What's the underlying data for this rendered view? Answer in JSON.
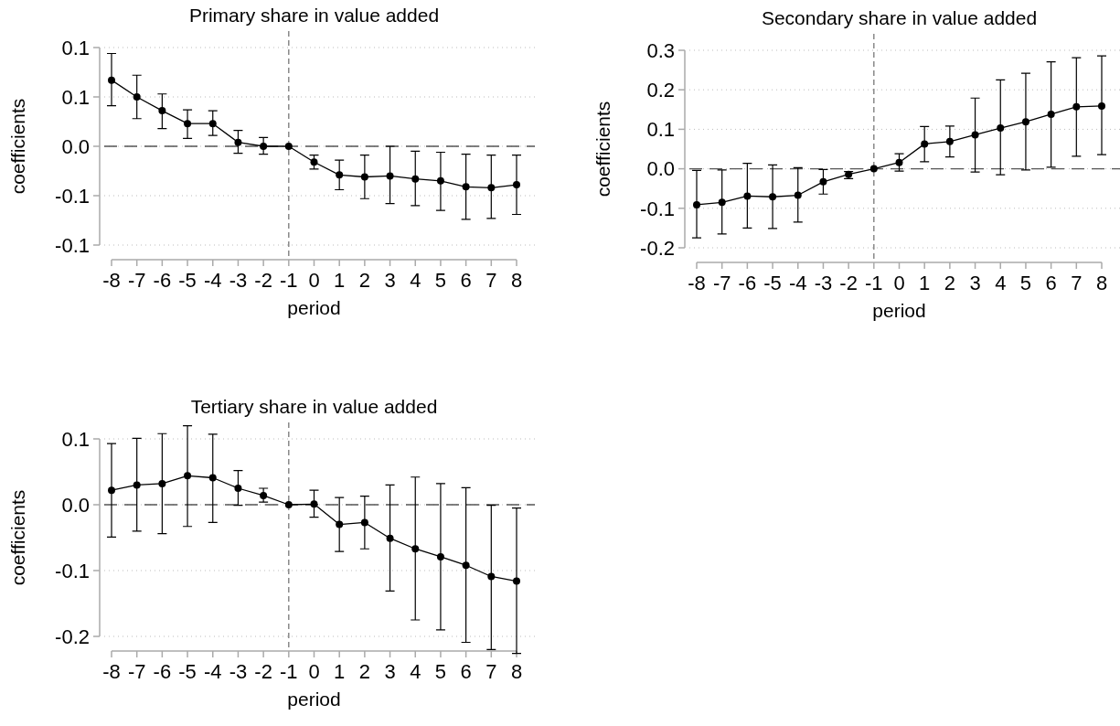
{
  "chart_data": [
    {
      "type": "line",
      "title": "Primary share in value added",
      "xlabel": "period",
      "ylabel": "coefficients",
      "x": [
        -8,
        -7,
        -6,
        -5,
        -4,
        -3,
        -2,
        -1,
        0,
        1,
        2,
        3,
        4,
        5,
        6,
        7,
        8
      ],
      "xlim": [
        -8,
        8
      ],
      "xticks": [
        -8,
        -7,
        -6,
        -5,
        -4,
        -3,
        -2,
        -1,
        0,
        1,
        2,
        3,
        4,
        5,
        6,
        7,
        8
      ],
      "ylim": [
        -0.1,
        0.1
      ],
      "yticks": [
        {
          "value": -0.1,
          "label": "-0.1"
        },
        {
          "value": -0.05,
          "label": "-0.1"
        },
        {
          "value": 0,
          "label": "0.0"
        },
        {
          "value": 0.05,
          "label": "0.1"
        },
        {
          "value": 0.1,
          "label": "0.1"
        }
      ],
      "grid": "y",
      "marker": "circle",
      "line_style": "solid",
      "ref_lines": [
        {
          "axis": "y",
          "value": 0,
          "line_style": "dashed",
          "color": "#555555"
        },
        {
          "axis": "x",
          "value": -1,
          "line_style": "dashed",
          "color": "#777777"
        }
      ],
      "series": [
        {
          "color": "#000000",
          "values": [
            0.067,
            0.05,
            0.036,
            0.023,
            0.023,
            0.004,
            0,
            0,
            -0.016,
            -0.029,
            -0.031,
            -0.03,
            -0.033,
            -0.035,
            -0.041,
            -0.042,
            -0.039
          ],
          "errors": [
            [
              0.041,
              0.094
            ],
            [
              0.028,
              0.072
            ],
            [
              0.018,
              0.053
            ],
            [
              0.008,
              0.037
            ],
            [
              0.011,
              0.036
            ],
            [
              -0.007,
              0.016
            ],
            [
              -0.008,
              0.009
            ],
            null,
            [
              -0.023,
              -0.009
            ],
            [
              -0.044,
              -0.014
            ],
            [
              -0.053,
              -0.009
            ],
            [
              -0.058,
              0
            ],
            [
              -0.06,
              -0.005
            ],
            [
              -0.065,
              -0.006
            ],
            [
              -0.074,
              -0.008
            ],
            [
              -0.073,
              -0.009
            ],
            [
              -0.069,
              -0.009
            ]
          ]
        }
      ]
    },
    {
      "type": "line",
      "title": "Secondary share in value added",
      "xlabel": "period",
      "ylabel": "coefficients",
      "x": [
        -8,
        -7,
        -6,
        -5,
        -4,
        -3,
        -2,
        -1,
        0,
        1,
        2,
        3,
        4,
        5,
        6,
        7,
        8
      ],
      "xlim": [
        -8,
        8
      ],
      "xticks": [
        -8,
        -7,
        -6,
        -5,
        -4,
        -3,
        -2,
        -1,
        0,
        1,
        2,
        3,
        4,
        5,
        6,
        7,
        8
      ],
      "ylim": [
        -0.2,
        0.3
      ],
      "yticks": [
        -0.2,
        -0.1,
        {
          "value": 0,
          "label": "0.0"
        },
        0.1,
        0.2,
        0.3
      ],
      "grid": "y",
      "marker": "circle",
      "line_style": "solid",
      "ref_lines": [
        {
          "axis": "y",
          "value": 0,
          "line_style": "dashed",
          "color": "#555555"
        },
        {
          "axis": "x",
          "value": -1,
          "line_style": "dashed",
          "color": "#777777"
        }
      ],
      "series": [
        {
          "color": "#000000",
          "values": [
            -0.091,
            -0.085,
            -0.069,
            -0.071,
            -0.067,
            -0.033,
            -0.014,
            0,
            0.016,
            0.063,
            0.069,
            0.086,
            0.103,
            0.119,
            0.138,
            0.157,
            0.159
          ],
          "errors": [
            [
              -0.175,
              -0.004
            ],
            [
              -0.165,
              -0.003
            ],
            [
              -0.15,
              0.014
            ],
            [
              -0.151,
              0.01
            ],
            [
              -0.135,
              0.003
            ],
            [
              -0.064,
              -0.002
            ],
            [
              -0.025,
              -0.007
            ],
            null,
            [
              -0.006,
              0.038
            ],
            [
              0.018,
              0.107
            ],
            [
              0.03,
              0.108
            ],
            [
              -0.008,
              0.179
            ],
            [
              -0.015,
              0.225
            ],
            [
              -0.003,
              0.242
            ],
            [
              0.004,
              0.271
            ],
            [
              0.032,
              0.281
            ],
            [
              0.036,
              0.286
            ]
          ]
        }
      ]
    },
    {
      "type": "line",
      "title": "Tertiary share in value added",
      "xlabel": "period",
      "ylabel": "coefficients",
      "x": [
        -8,
        -7,
        -6,
        -5,
        -4,
        -3,
        -2,
        -1,
        0,
        1,
        2,
        3,
        4,
        5,
        6,
        7,
        8
      ],
      "xlim": [
        -8,
        8
      ],
      "xticks": [
        -8,
        -7,
        -6,
        -5,
        -4,
        -3,
        -2,
        -1,
        0,
        1,
        2,
        3,
        4,
        5,
        6,
        7,
        8
      ],
      "ylim": [
        -0.2,
        0.1
      ],
      "yticks": [
        -0.2,
        -0.1,
        {
          "value": 0,
          "label": "0.0"
        },
        0.1
      ],
      "grid": "y",
      "marker": "circle",
      "line_style": "solid",
      "ref_lines": [
        {
          "axis": "y",
          "value": 0,
          "line_style": "dashed",
          "color": "#555555"
        },
        {
          "axis": "x",
          "value": -1,
          "line_style": "dashed",
          "color": "#777777"
        }
      ],
      "series": [
        {
          "color": "#000000",
          "values": [
            0.022,
            0.03,
            0.032,
            0.044,
            0.041,
            0.025,
            0.014,
            0,
            0.001,
            -0.03,
            -0.027,
            -0.051,
            -0.067,
            -0.079,
            -0.092,
            -0.109,
            -0.116
          ],
          "errors": [
            [
              -0.049,
              0.093
            ],
            [
              -0.04,
              0.101
            ],
            [
              -0.044,
              0.108
            ],
            [
              -0.033,
              0.12
            ],
            [
              -0.027,
              0.107
            ],
            [
              -0.001,
              0.052
            ],
            [
              0.004,
              0.025
            ],
            null,
            [
              -0.019,
              0.022
            ],
            [
              -0.071,
              0.011
            ],
            [
              -0.067,
              0.013
            ],
            [
              -0.131,
              0.03
            ],
            [
              -0.175,
              0.042
            ],
            [
              -0.19,
              0.032
            ],
            [
              -0.209,
              0.026
            ],
            [
              -0.22,
              -0.001
            ],
            [
              -0.226,
              -0.005
            ]
          ]
        }
      ]
    }
  ]
}
